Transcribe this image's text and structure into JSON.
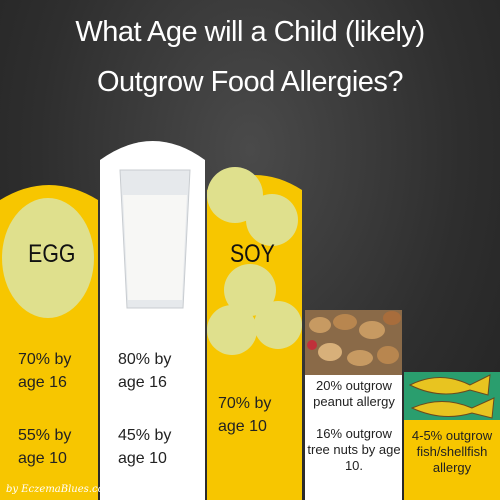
{
  "title": {
    "lines": [
      "What Age will a Child (likely)",
      "Outgrow Food Allergies?"
    ]
  },
  "columns": [
    {
      "label": "EGG",
      "stats": [
        "70%  by age 16",
        "55%  by age 10"
      ]
    },
    {
      "stats": [
        "80% by age 16",
        "45% by age 10"
      ]
    },
    {
      "label": "SOY",
      "stats": [
        "70% by age 10"
      ]
    },
    {
      "stats": [
        "20% outgrow peanut allergy",
        "16% outgrow tree nuts by age 10."
      ]
    },
    {
      "stats": [
        "4-5% outgrow fish/shellfish allergy"
      ]
    }
  ],
  "credit": "by EczemaBlues.com"
}
